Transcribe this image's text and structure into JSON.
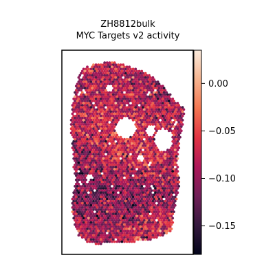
{
  "chart_data": {
    "type": "heatmap",
    "title": "ZH8812bulk",
    "subtitle": "MYC Targets v2 activity",
    "xlabel": "",
    "ylabel": "",
    "colormap": "rocket",
    "colormap_stops": [
      "#03051a",
      "#35193e",
      "#701f57",
      "#ad1759",
      "#e13342",
      "#f37651",
      "#f6b48f",
      "#faebdd"
    ],
    "colorbar": {
      "min": -0.18,
      "max": 0.035,
      "ticks": [
        0.0,
        -0.05,
        -0.1,
        -0.15
      ],
      "tick_labels": [
        "0.00",
        "−0.05",
        "−0.10",
        "−0.15"
      ]
    },
    "value_distribution": {
      "mean": -0.085,
      "spread": 0.03
    },
    "grid": false,
    "legend": "colorbar-right"
  }
}
